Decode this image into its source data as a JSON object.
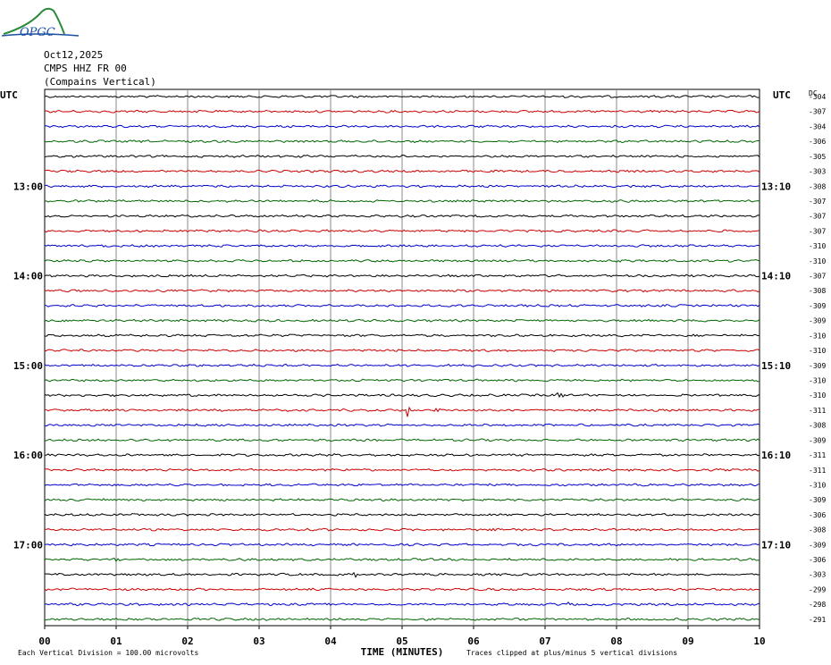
{
  "header": {
    "date": "Oct12,2025",
    "station": "CMPS HHZ FR 00",
    "location": "(Compains Vertical)"
  },
  "logo": {
    "text": "OPGC"
  },
  "chart_data": {
    "type": "line",
    "title": "",
    "xlabel": "TIME (MINUTES)",
    "ylabel": "",
    "xlim": [
      0,
      10
    ],
    "x_ticks": [
      "00",
      "01",
      "02",
      "03",
      "04",
      "05",
      "06",
      "07",
      "08",
      "09",
      "10"
    ],
    "left_axis_label": "UTC",
    "right_axis_label": "UTC",
    "dc_label": "DC",
    "left_hour_labels": [
      {
        "label": "13:00",
        "row": 6
      },
      {
        "label": "14:00",
        "row": 12
      },
      {
        "label": "15:00",
        "row": 18
      },
      {
        "label": "16:00",
        "row": 24
      },
      {
        "label": "17:00",
        "row": 30
      }
    ],
    "right_hour_labels": [
      {
        "label": "13:10",
        "row": 6
      },
      {
        "label": "14:10",
        "row": 12
      },
      {
        "label": "15:10",
        "row": 18
      },
      {
        "label": "16:10",
        "row": 24
      },
      {
        "label": "17:10",
        "row": 30
      }
    ],
    "trace_colors": [
      "#000000",
      "#cc0000",
      "#0000cc",
      "#006600"
    ],
    "dc_offsets": [
      "-304",
      "-307",
      "-304",
      "-306",
      "-305",
      "-303",
      "-308",
      "-307",
      "-307",
      "-307",
      "-310",
      "-310",
      "-307",
      "-308",
      "-309",
      "-309",
      "-310",
      "-310",
      "-309",
      "-310",
      "-310",
      "-311",
      "-308",
      "-309",
      "-311",
      "-311",
      "-310",
      "-309",
      "-306",
      "-308",
      "-309",
      "-306",
      "-303",
      "-299",
      "-298",
      "-291"
    ],
    "events": [
      {
        "row": 20,
        "x": 7.15,
        "amp": 6
      },
      {
        "row": 21,
        "x": 5.07,
        "amp": 10
      },
      {
        "row": 21,
        "x": 5.45,
        "amp": 4
      },
      {
        "row": 21,
        "x": 7.45,
        "amp": 3
      },
      {
        "row": 31,
        "x": 0.95,
        "amp": 4
      },
      {
        "row": 32,
        "x": 4.3,
        "amp": 6
      },
      {
        "row": 34,
        "x": 7.3,
        "amp": 3
      },
      {
        "row": 29,
        "x": 1.85,
        "amp": 2
      },
      {
        "row": 29,
        "x": 6.2,
        "amp": 3
      }
    ],
    "footer_left": "Each Vertical Division =  100.00 microvolts",
    "footer_right": "Traces clipped at plus/minus 5 vertical divisions"
  }
}
